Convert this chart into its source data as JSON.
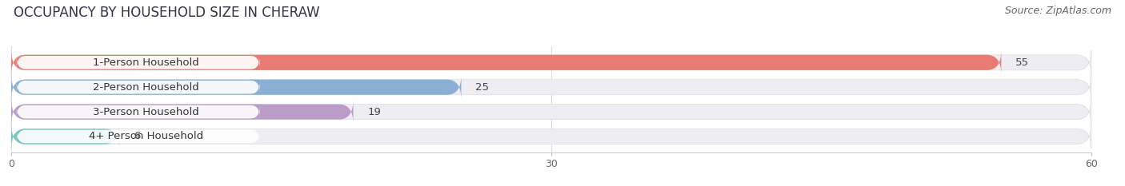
{
  "title": "OCCUPANCY BY HOUSEHOLD SIZE IN CHERAW",
  "source": "Source: ZipAtlas.com",
  "categories": [
    "1-Person Household",
    "2-Person Household",
    "3-Person Household",
    "4+ Person Household"
  ],
  "values": [
    55,
    25,
    19,
    6
  ],
  "bar_colors": [
    "#E87B72",
    "#8BAED4",
    "#B99CC8",
    "#72C4C0"
  ],
  "xlim": [
    -2,
    63
  ],
  "xlim_data": [
    0,
    60
  ],
  "xticks": [
    0,
    30,
    60
  ],
  "background_color": "#FFFFFF",
  "bar_bg_color": "#EDEDF2",
  "title_fontsize": 12,
  "source_fontsize": 9,
  "label_fontsize": 9.5,
  "value_fontsize": 9.5,
  "bar_height": 0.62,
  "bar_gap": 1.0
}
